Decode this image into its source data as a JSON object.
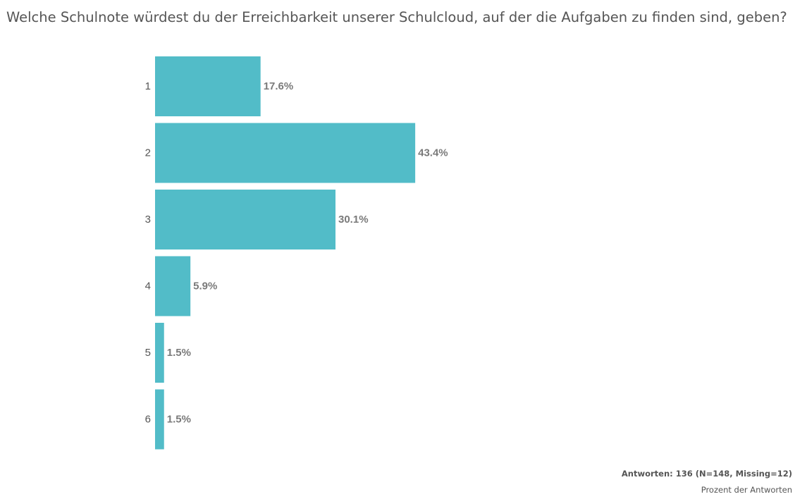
{
  "chart_data": {
    "type": "bar",
    "orientation": "horizontal",
    "title": "Welche Schulnote würdest du der Erreichbarkeit unserer Schulcloud, auf der die Aufgaben zu finden sind, geben?",
    "categories": [
      "1",
      "2",
      "3",
      "4",
      "5",
      "6"
    ],
    "values": [
      17.6,
      43.4,
      30.1,
      5.9,
      1.5,
      1.5
    ],
    "value_labels": [
      "17.6%",
      "43.4%",
      "30.1%",
      "5.9%",
      "1.5%",
      "1.5%"
    ],
    "xlabel": "Prozent der Antworten",
    "ylabel": "",
    "xlim": [
      0,
      100
    ],
    "grid": false,
    "bar_color": "#52bcc8",
    "footnote": "Antworten: 136 (N=148, Missing=12)"
  }
}
